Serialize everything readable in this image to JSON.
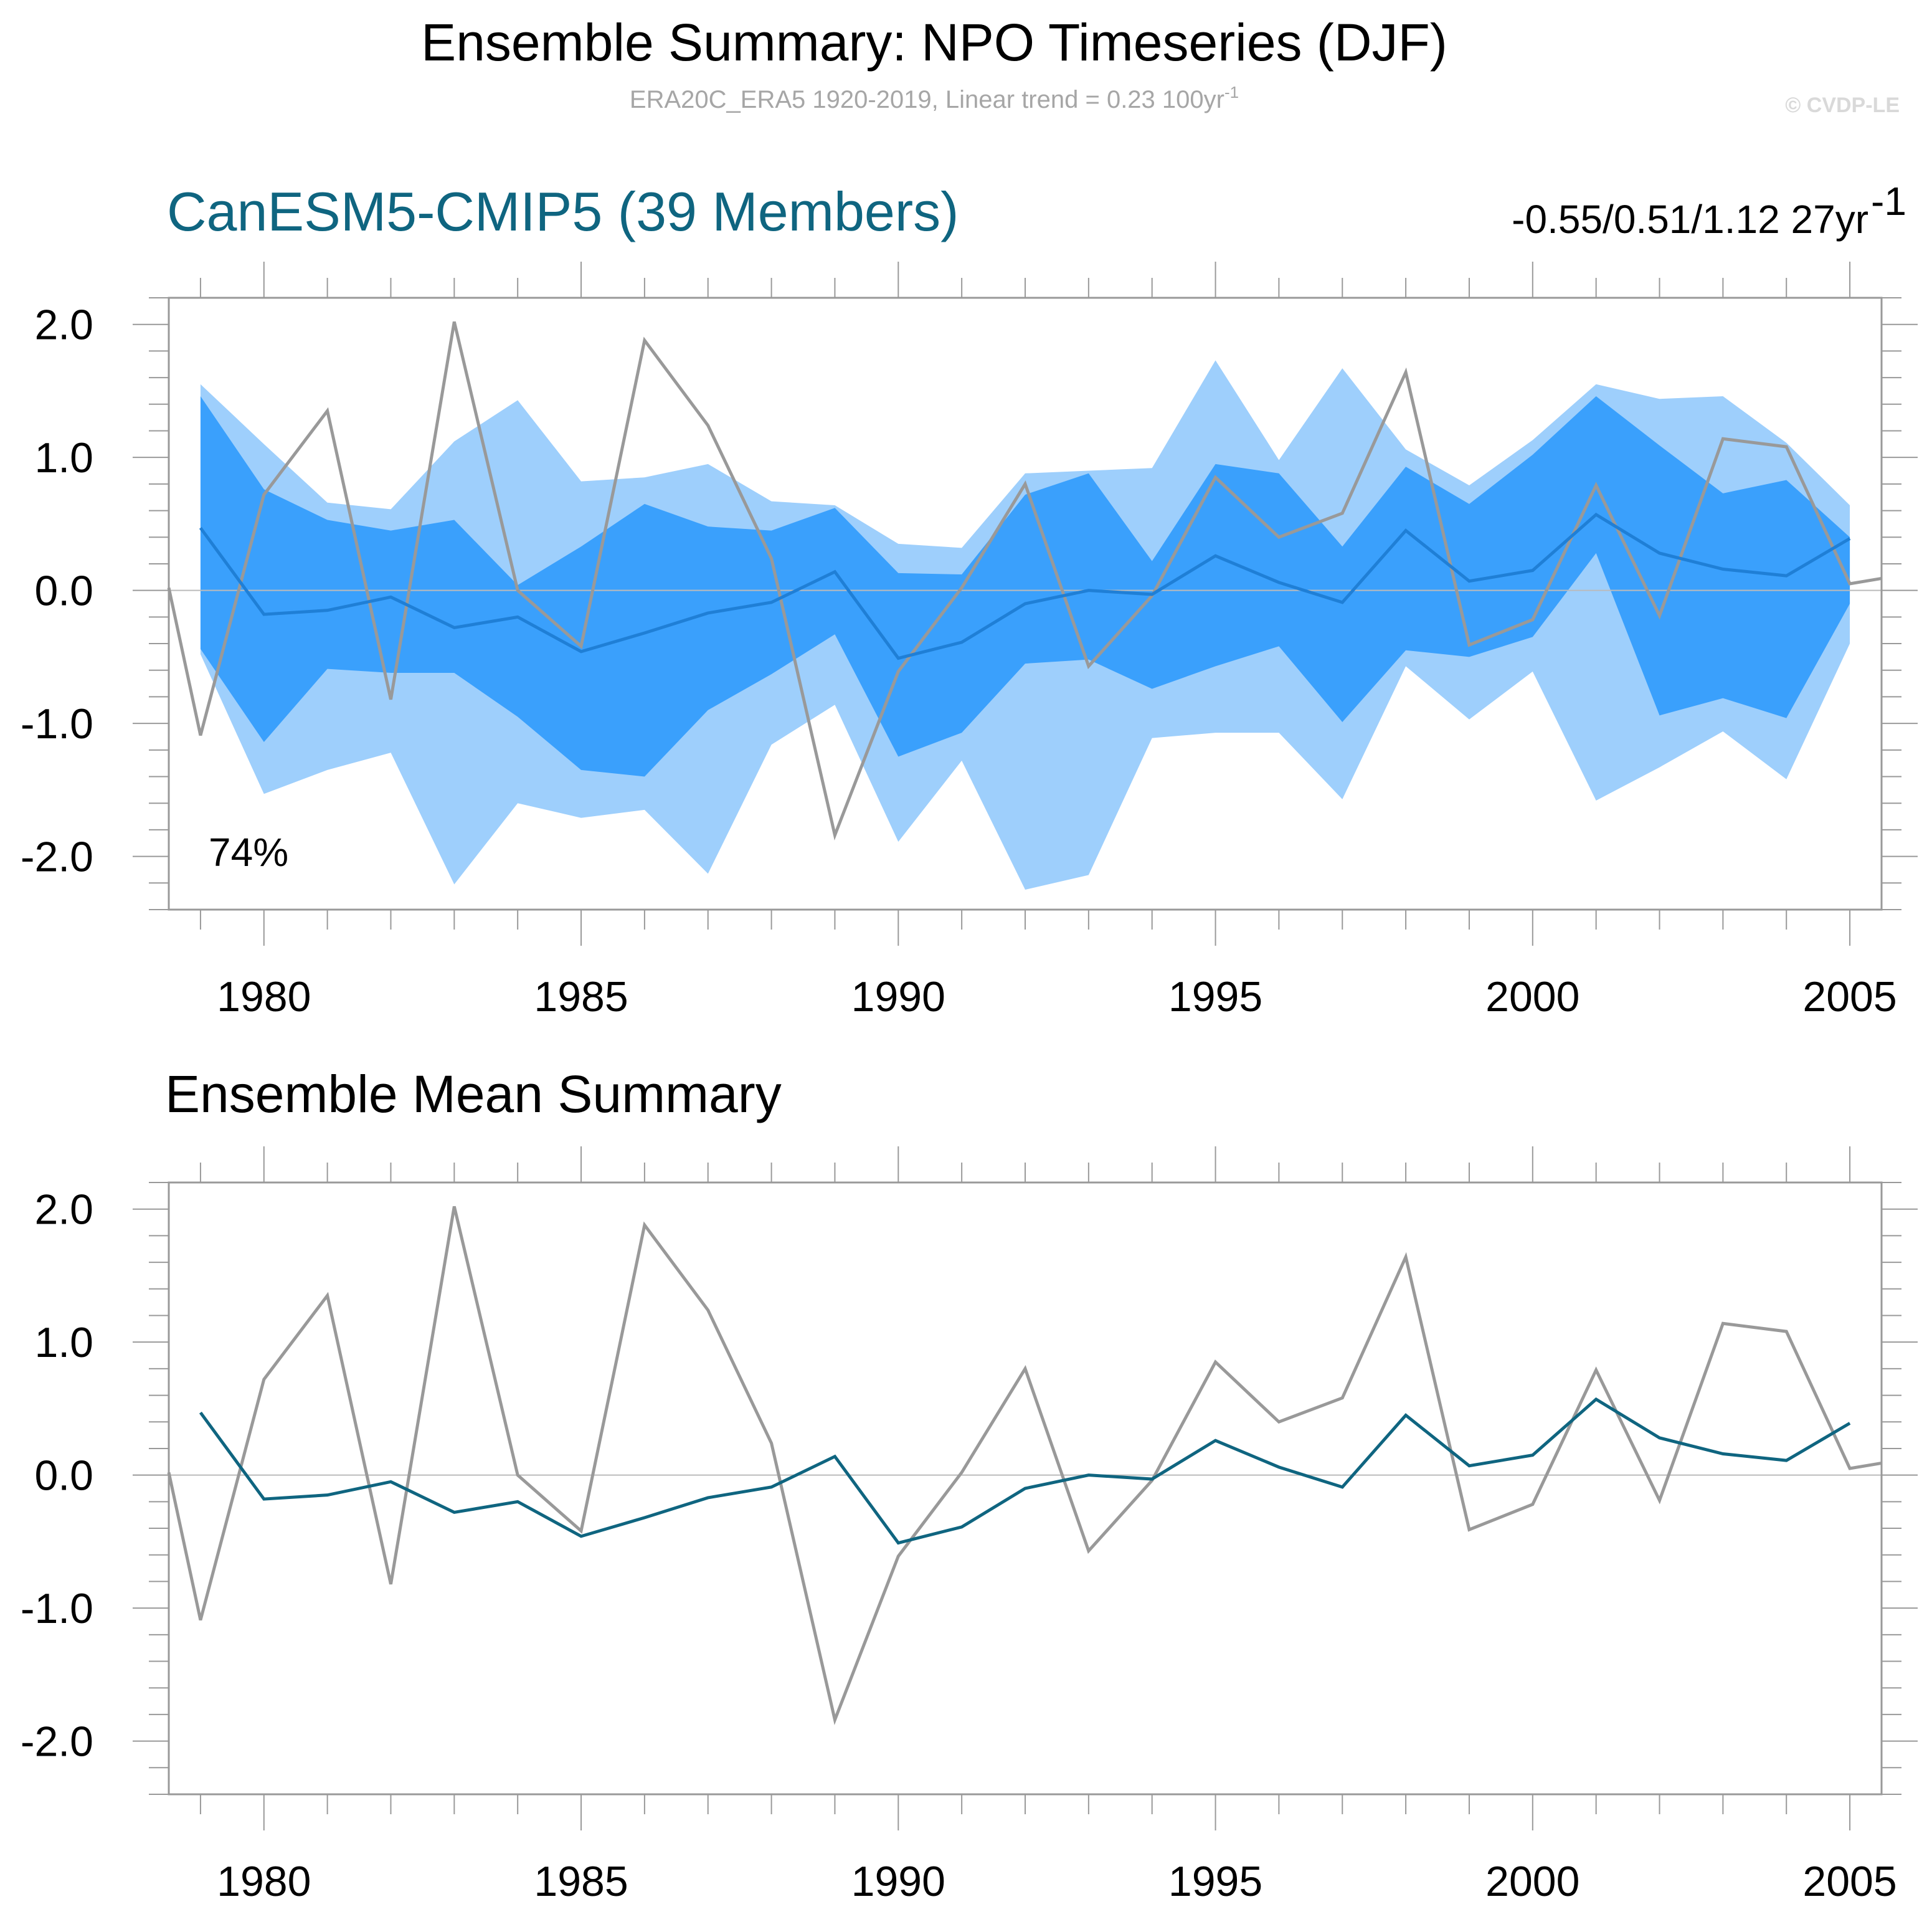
{
  "header": {
    "title": "Ensemble Summary: NPO Timeseries (DJF)",
    "subtitle_prefix": "ERA20C_ERA5 1920-2019, Linear trend = 0.23 100yr",
    "subtitle_sup": "-1",
    "copyright": "© CVDP-LE"
  },
  "colors": {
    "band_outer": "#9ecffc",
    "band_inner": "#3aa0fc",
    "spread_mean_line": "#1f7fd6",
    "mean_line": "#0f6580",
    "obs_line": "#999999",
    "model_title": "#0f6580"
  },
  "panel1": {
    "model_title": "CanESM5-CMIP5 (39 Members)",
    "stats_text": "-0.55/0.51/1.12 27yr",
    "stats_sup": "-1",
    "percent_label": "74%"
  },
  "panel2": {
    "title": "Ensemble Mean Summary"
  },
  "chart_data": [
    {
      "type": "area",
      "xlim": [
        1978.5,
        2005.5
      ],
      "ylim": [
        -2.4,
        2.2
      ],
      "x_ticks": [
        1980,
        1985,
        1990,
        1995,
        2000,
        2005
      ],
      "x_tick_labels": [
        "1980",
        "1985",
        "1990",
        "1995",
        "2000",
        "2005"
      ],
      "y_ticks": [
        2.0,
        1.0,
        0.0,
        -1.0,
        -2.0
      ],
      "y_tick_labels": [
        "2.0",
        "1.0",
        "0.0",
        "-1.0",
        "-2.0"
      ],
      "model_years": [
        1979,
        1980,
        1981,
        1982,
        1983,
        1984,
        1985,
        1986,
        1987,
        1988,
        1989,
        1990,
        1991,
        1992,
        1993,
        1994,
        1995,
        1996,
        1997,
        1998,
        1999,
        2000,
        2001,
        2002,
        2003,
        2004,
        2005
      ],
      "outer_upper": [
        1.55,
        1.1,
        0.66,
        0.61,
        1.12,
        1.43,
        0.82,
        0.85,
        0.95,
        0.67,
        0.64,
        0.35,
        0.32,
        0.88,
        0.9,
        0.92,
        1.73,
        0.98,
        1.67,
        1.06,
        0.79,
        1.13,
        1.55,
        1.44,
        1.46,
        1.11,
        0.64
      ],
      "inner_upper": [
        1.46,
        0.76,
        0.53,
        0.45,
        0.53,
        0.04,
        0.33,
        0.65,
        0.48,
        0.45,
        0.62,
        0.13,
        0.12,
        0.72,
        0.88,
        0.22,
        0.95,
        0.88,
        0.33,
        0.93,
        0.65,
        1.02,
        1.46,
        1.09,
        0.73,
        0.83,
        0.4
      ],
      "ensemble_mean": [
        0.47,
        -0.18,
        -0.15,
        -0.05,
        -0.28,
        -0.2,
        -0.46,
        -0.32,
        -0.17,
        -0.09,
        0.14,
        -0.51,
        -0.39,
        -0.1,
        0.0,
        -0.03,
        0.26,
        0.06,
        -0.09,
        0.45,
        0.07,
        0.15,
        0.57,
        0.28,
        0.16,
        0.11,
        0.39
      ],
      "inner_lower": [
        -0.44,
        -1.14,
        -0.59,
        -0.62,
        -0.62,
        -0.95,
        -1.35,
        -1.4,
        -0.9,
        -0.63,
        -0.33,
        -1.25,
        -1.07,
        -0.55,
        -0.52,
        -0.74,
        -0.57,
        -0.42,
        -0.99,
        -0.45,
        -0.5,
        -0.35,
        0.28,
        -0.94,
        -0.81,
        -0.96,
        -0.1
      ],
      "outer_lower": [
        -0.48,
        -1.53,
        -1.35,
        -1.22,
        -2.21,
        -1.6,
        -1.71,
        -1.65,
        -2.13,
        -1.16,
        -0.86,
        -1.89,
        -1.28,
        -2.25,
        -2.14,
        -1.11,
        -1.07,
        -1.07,
        -1.57,
        -0.57,
        -0.97,
        -0.61,
        -1.58,
        -1.33,
        -1.06,
        -1.42,
        -0.4
      ],
      "obs_years": [
        1978.5,
        1979,
        1980,
        1981,
        1982,
        1983,
        1984,
        1985,
        1986,
        1987,
        1988,
        1989,
        1990,
        1991,
        1992,
        1993,
        1994,
        1995,
        1996,
        1997,
        1998,
        1999,
        2000,
        2001,
        2002,
        2003,
        2004,
        2005,
        2005.5
      ],
      "obs_values": [
        0.02,
        -1.09,
        0.72,
        1.35,
        -0.82,
        2.02,
        0.0,
        -0.42,
        1.88,
        1.24,
        0.24,
        -1.84,
        -0.61,
        0.02,
        0.8,
        -0.57,
        -0.04,
        0.85,
        0.4,
        0.58,
        1.64,
        -0.41,
        -0.22,
        0.79,
        -0.19,
        1.14,
        1.08,
        0.05,
        0.09
      ]
    },
    {
      "type": "line",
      "xlim": [
        1978.5,
        2005.5
      ],
      "ylim": [
        -2.4,
        2.2
      ],
      "x_ticks": [
        1980,
        1985,
        1990,
        1995,
        2000,
        2005
      ],
      "x_tick_labels": [
        "1980",
        "1985",
        "1990",
        "1995",
        "2000",
        "2005"
      ],
      "y_ticks": [
        2.0,
        1.0,
        0.0,
        -1.0,
        -2.0
      ],
      "y_tick_labels": [
        "2.0",
        "1.0",
        "0.0",
        "-1.0",
        "-2.0"
      ],
      "model_years": [
        1979,
        1980,
        1981,
        1982,
        1983,
        1984,
        1985,
        1986,
        1987,
        1988,
        1989,
        1990,
        1991,
        1992,
        1993,
        1994,
        1995,
        1996,
        1997,
        1998,
        1999,
        2000,
        2001,
        2002,
        2003,
        2004,
        2005
      ],
      "ensemble_mean": [
        0.47,
        -0.18,
        -0.15,
        -0.05,
        -0.28,
        -0.2,
        -0.46,
        -0.32,
        -0.17,
        -0.09,
        0.14,
        -0.51,
        -0.39,
        -0.1,
        0.0,
        -0.03,
        0.26,
        0.06,
        -0.09,
        0.45,
        0.07,
        0.15,
        0.57,
        0.28,
        0.16,
        0.11,
        0.39
      ],
      "obs_years": [
        1978.5,
        1979,
        1980,
        1981,
        1982,
        1983,
        1984,
        1985,
        1986,
        1987,
        1988,
        1989,
        1990,
        1991,
        1992,
        1993,
        1994,
        1995,
        1996,
        1997,
        1998,
        1999,
        2000,
        2001,
        2002,
        2003,
        2004,
        2005,
        2005.5
      ],
      "obs_values": [
        0.02,
        -1.09,
        0.72,
        1.35,
        -0.82,
        2.02,
        0.0,
        -0.42,
        1.88,
        1.24,
        0.24,
        -1.84,
        -0.61,
        0.02,
        0.8,
        -0.57,
        -0.04,
        0.85,
        0.4,
        0.58,
        1.64,
        -0.41,
        -0.22,
        0.79,
        -0.19,
        1.14,
        1.08,
        0.05,
        0.09
      ]
    }
  ]
}
